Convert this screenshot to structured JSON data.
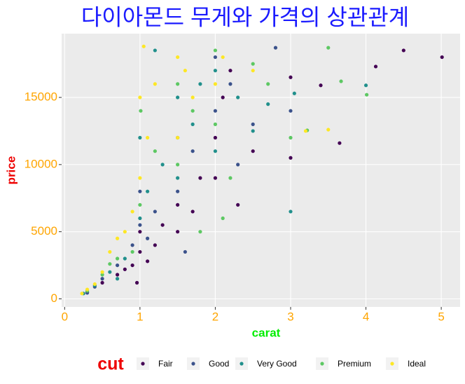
{
  "chart_data": {
    "type": "scatter",
    "title": "다이아몬드 무게와 가격의 상관관계",
    "x_label": "carat",
    "y_label": "price",
    "legend_title": "cut",
    "xlim": [
      -0.04,
      5.25
    ],
    "ylim": [
      -600,
      19750
    ],
    "xticks": [
      0,
      1,
      2,
      3,
      4,
      5
    ],
    "yticks": [
      0,
      5000,
      10000,
      15000
    ],
    "grid": true,
    "legend_position": "bottom",
    "series": [
      {
        "name": "Fair",
        "color": "#440154",
        "x": [
          0.3,
          0.5,
          0.7,
          0.9,
          1.0,
          1.0,
          1.2,
          1.5,
          1.5,
          1.7,
          2.0,
          2.0,
          2.1,
          2.3,
          2.5,
          3.0,
          3.0,
          3.4,
          3.65,
          4.13,
          4.5,
          5.01,
          0.8,
          1.1,
          1.3,
          1.8,
          2.2,
          0.96
        ],
        "values": [
          500,
          1200,
          1800,
          2500,
          3500,
          5000,
          4000,
          5000,
          7000,
          6500,
          9000,
          12000,
          15000,
          7000,
          11000,
          10500,
          16500,
          15900,
          11600,
          17300,
          18500,
          18000,
          2200,
          2800,
          5500,
          9000,
          17000,
          1200
        ]
      },
      {
        "name": "Good",
        "color": "#3B528B",
        "x": [
          0.3,
          0.5,
          0.7,
          0.9,
          1.0,
          1.0,
          1.2,
          1.5,
          1.5,
          1.7,
          2.0,
          2.0,
          2.2,
          2.5,
          2.8,
          3.0,
          1.1,
          0.4,
          1.6,
          2.3
        ],
        "values": [
          450,
          1500,
          2500,
          4000,
          5500,
          8000,
          6500,
          8000,
          12000,
          11000,
          14000,
          18000,
          16000,
          13000,
          18700,
          14000,
          4500,
          900,
          3500,
          10000
        ]
      },
      {
        "name": "Very Good",
        "color": "#21908C",
        "x": [
          0.25,
          0.4,
          0.6,
          0.8,
          1.0,
          1.0,
          1.1,
          1.3,
          1.5,
          1.5,
          1.7,
          2.0,
          2.0,
          2.3,
          2.7,
          3.0,
          3.05,
          4.0,
          1.2,
          0.7,
          1.8,
          2.5
        ],
        "values": [
          400,
          1000,
          2000,
          3000,
          6000,
          12000,
          8000,
          10000,
          9000,
          15000,
          13000,
          11000,
          17000,
          15000,
          14500,
          6500,
          15300,
          15900,
          18500,
          1500,
          16000,
          12500
        ]
      },
      {
        "name": "Premium",
        "color": "#5DC863",
        "x": [
          0.3,
          0.5,
          0.7,
          0.9,
          1.0,
          1.01,
          1.2,
          1.5,
          1.5,
          1.7,
          2.0,
          2.0,
          2.2,
          2.5,
          2.7,
          3.0,
          3.5,
          3.67,
          4.01,
          1.8,
          2.1,
          0.6,
          3.22
        ],
        "values": [
          600,
          1800,
          3000,
          3500,
          7000,
          14000,
          11000,
          10000,
          16000,
          14000,
          13000,
          18500,
          9000,
          17500,
          16000,
          12000,
          18700,
          16200,
          15200,
          5000,
          6000,
          2600,
          12550
        ]
      },
      {
        "name": "Ideal",
        "color": "#FDE725",
        "x": [
          0.23,
          0.3,
          0.4,
          0.5,
          0.6,
          0.7,
          0.8,
          1.0,
          1.0,
          1.1,
          1.2,
          1.5,
          1.5,
          1.6,
          1.7,
          2.0,
          2.1,
          2.5,
          3.2,
          3.5,
          1.05,
          0.9
        ],
        "values": [
          400,
          700,
          1100,
          2000,
          3500,
          4500,
          5000,
          9000,
          15000,
          12000,
          16000,
          12000,
          18000,
          17000,
          15000,
          16000,
          18000,
          17000,
          12500,
          12600,
          18800,
          6500
        ]
      }
    ]
  }
}
